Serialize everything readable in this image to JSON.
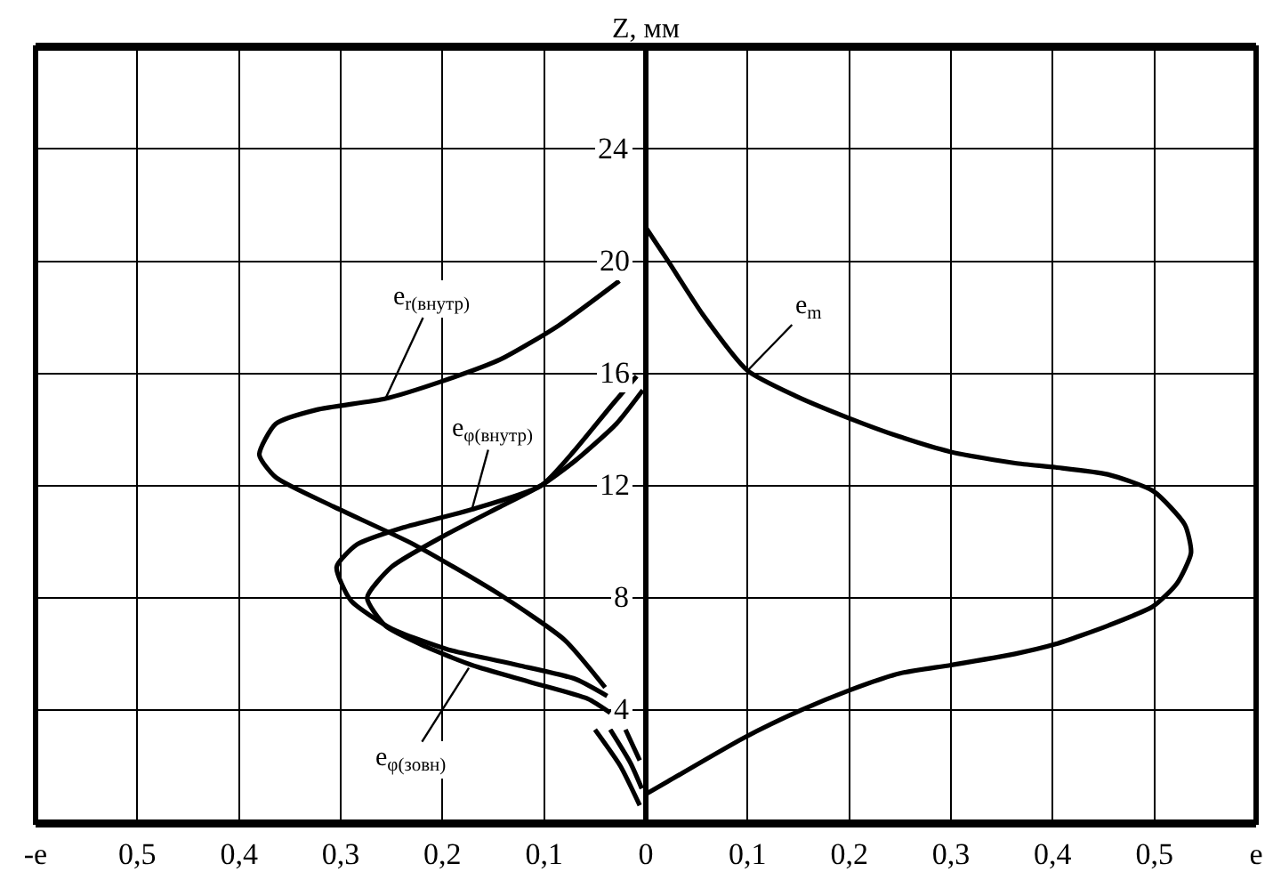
{
  "chart_data": {
    "type": "line",
    "ylabel": "Z, мм",
    "xlim": [
      -0.6,
      0.6
    ],
    "xticks": [
      {
        "value": -0.6,
        "label": "-e"
      },
      {
        "value": -0.5,
        "label": "0,5"
      },
      {
        "value": -0.4,
        "label": "0,4"
      },
      {
        "value": -0.3,
        "label": "0,3"
      },
      {
        "value": -0.2,
        "label": "0,2"
      },
      {
        "value": -0.1,
        "label": "0,1"
      },
      0,
      {
        "value": 0.1,
        "label": "0,1"
      },
      {
        "value": 0.2,
        "label": "0,2"
      },
      {
        "value": 0.3,
        "label": "0,3"
      },
      {
        "value": 0.4,
        "label": "0,4"
      },
      {
        "value": 0.5,
        "label": "0,5"
      },
      {
        "value": 0.6,
        "label": "e"
      }
    ],
    "ylim": [
      0,
      27.6
    ],
    "yticks": [
      {
        "value": 0,
        "label": null
      },
      4,
      8,
      12,
      16,
      20,
      24
    ],
    "grid": true,
    "marker": "none",
    "line_style": "solid",
    "series": [
      {
        "color": "#000000",
        "x": [
          0,
          0.022,
          0.096,
          0.153,
          0.2,
          0.249,
          0.3,
          0.363,
          0.403,
          0.454,
          0.499,
          0.522,
          0.536,
          0.53,
          0.499,
          0.454,
          0.403,
          0.363,
          0.3,
          0.249,
          0.2,
          0.147,
          0.1,
          0.056,
          0.022,
          0
        ],
        "values": [
          1.0,
          1.46,
          3.0,
          4.0,
          4.7,
          5.3,
          5.6,
          6.0,
          6.35,
          7.0,
          7.7,
          8.5,
          9.6,
          10.6,
          11.8,
          12.4,
          12.65,
          12.8,
          13.2,
          13.75,
          14.4,
          15.2,
          16.1,
          18.1,
          20.0,
          21.2
        ]
      },
      {
        "color": "#000000",
        "x": [
          -0.026,
          -0.086,
          -0.143,
          -0.202,
          -0.256,
          -0.324,
          -0.364,
          -0.38,
          -0.364,
          -0.307,
          -0.228,
          -0.143,
          -0.08,
          -0.04,
          null,
          -0.05,
          -0.025,
          -0.006
        ],
        "values": [
          19.3,
          17.7,
          16.5,
          15.7,
          15.1,
          14.7,
          14.2,
          13.1,
          12.3,
          11.25,
          9.9,
          8.1,
          6.5,
          4.8,
          null,
          3.3,
          2.0,
          0.6
        ]
      },
      {
        "color": "#000000",
        "x": [
          -0.009,
          -0.035,
          -0.069,
          -0.103,
          -0.171,
          -0.239,
          -0.284,
          -0.304,
          -0.29,
          -0.25,
          -0.194,
          -0.126,
          -0.069,
          -0.038,
          null,
          -0.035,
          -0.015,
          -0.004
        ],
        "values": [
          15.9,
          14.8,
          13.3,
          12.0,
          11.15,
          10.5,
          9.9,
          9.1,
          7.9,
          6.9,
          6.15,
          5.6,
          5.1,
          4.5,
          null,
          3.3,
          2.1,
          1.2
        ]
      },
      {
        "color": "#000000",
        "x": [
          -0.003,
          -0.029,
          -0.069,
          -0.103,
          -0.143,
          -0.199,
          -0.25,
          -0.274,
          -0.256,
          -0.216,
          -0.171,
          -0.114,
          -0.057,
          -0.035,
          null,
          -0.02,
          -0.006
        ],
        "values": [
          15.4,
          14.2,
          12.9,
          12.0,
          11.25,
          10.2,
          9.1,
          8.0,
          7.0,
          6.25,
          5.6,
          5.0,
          4.4,
          3.9,
          null,
          3.3,
          2.2
        ]
      }
    ],
    "annotations": [
      {
        "text": "e$_{r(внутр)}$",
        "x": -0.256,
        "y": 15.1
      },
      {
        "text": "e$_{φ(внутр)}$",
        "x": -0.171,
        "y": 11.15
      },
      {
        "text": "e$_{φ(зовн)}$",
        "x": -0.174,
        "y": 5.5
      },
      {
        "text": "e$_{m}$",
        "x": 0.1,
        "y": 16.1
      }
    ]
  }
}
